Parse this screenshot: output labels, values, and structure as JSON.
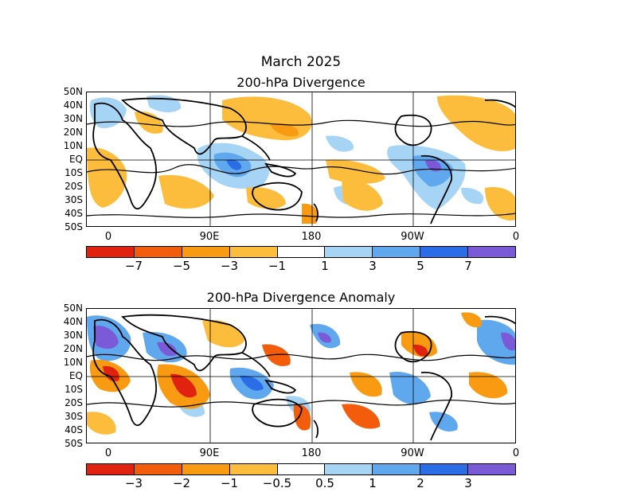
{
  "main_title": "March 2025",
  "panels": [
    {
      "title": "200-hPa Divergence",
      "lat_labels": [
        "50N",
        "40N",
        "30N",
        "20N",
        "10N",
        "EQ",
        "10S",
        "20S",
        "30S",
        "40S",
        "50S"
      ],
      "lon_labels": [
        "0",
        "90E",
        "180",
        "90W",
        "0"
      ],
      "colorbar": {
        "colors": [
          "#e0220f",
          "#f25c0a",
          "#f99b12",
          "#fdbd3c",
          "#ffffff",
          "#a6d4f5",
          "#5fa8ee",
          "#2a6de6",
          "#7a5ad6"
        ],
        "labels": [
          "−7",
          "−5",
          "−3",
          "−1",
          "1",
          "3",
          "5",
          "7"
        ]
      }
    },
    {
      "title": "200-hPa Divergence Anomaly",
      "lat_labels": [
        "50N",
        "40N",
        "30N",
        "20N",
        "10N",
        "EQ",
        "10S",
        "20S",
        "30S",
        "40S",
        "50S"
      ],
      "lon_labels": [
        "0",
        "90E",
        "180",
        "90W",
        "0"
      ],
      "colorbar": {
        "colors": [
          "#e0220f",
          "#f25c0a",
          "#f99b12",
          "#fdbd3c",
          "#ffffff",
          "#a6d4f5",
          "#5fa8ee",
          "#2a6de6",
          "#7a5ad6"
        ],
        "labels": [
          "−3",
          "−2",
          "−1",
          "−0.5",
          "0.5",
          "1",
          "2",
          "3"
        ]
      }
    }
  ]
}
